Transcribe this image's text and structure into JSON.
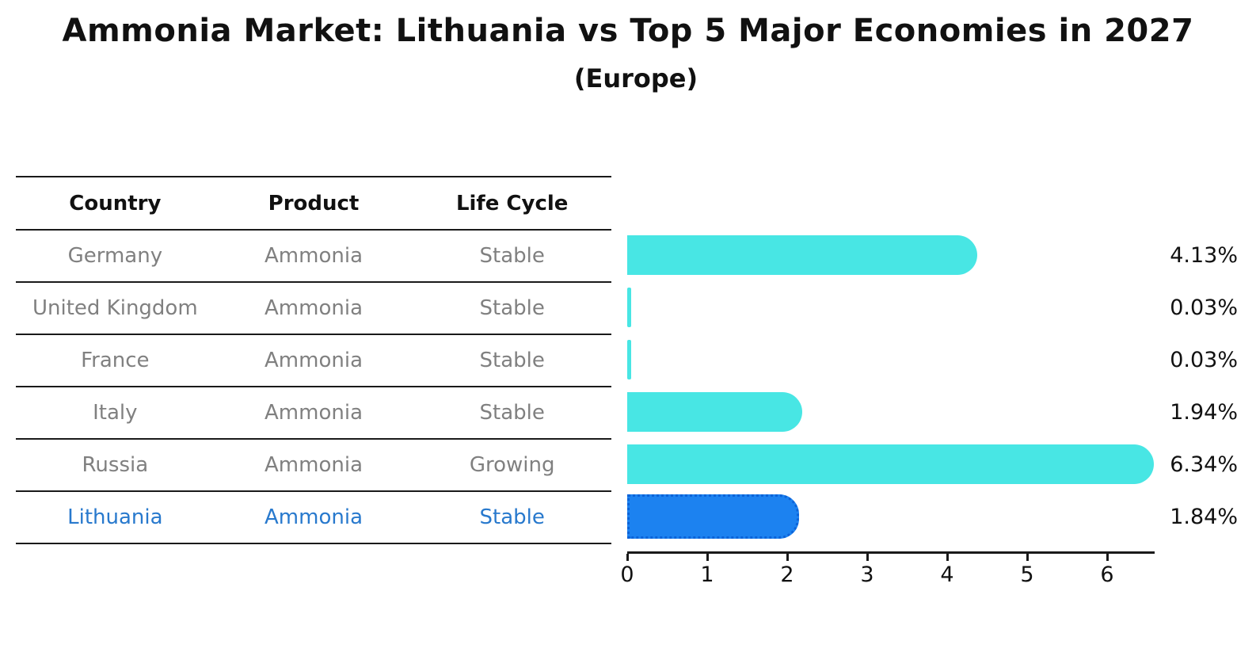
{
  "title": "Ammonia Market: Lithuania vs Top 5 Major Economies in 2027",
  "subtitle": "(Europe)",
  "table": {
    "headers": [
      "Country",
      "Product",
      "Life Cycle"
    ],
    "rows": [
      {
        "country": "Germany",
        "product": "Ammonia",
        "life_cycle": "Stable",
        "highlighted": false
      },
      {
        "country": "United Kingdom",
        "product": "Ammonia",
        "life_cycle": "Stable",
        "highlighted": false
      },
      {
        "country": "France",
        "product": "Ammonia",
        "life_cycle": "Stable",
        "highlighted": false
      },
      {
        "country": "Italy",
        "product": "Ammonia",
        "life_cycle": "Stable",
        "highlighted": false
      },
      {
        "country": "Russia",
        "product": "Ammonia",
        "life_cycle": "Growing",
        "highlighted": false
      },
      {
        "country": "Lithuania",
        "product": "Ammonia",
        "life_cycle": "Stable",
        "highlighted": true
      }
    ]
  },
  "chart_data": {
    "type": "bar",
    "orientation": "horizontal",
    "categories": [
      "Germany",
      "United Kingdom",
      "France",
      "Italy",
      "Russia",
      "Lithuania"
    ],
    "values": [
      4.13,
      0.03,
      0.03,
      1.94,
      6.34,
      1.84
    ],
    "value_labels": [
      "4.13%",
      "0.03%",
      "0.03%",
      "1.94%",
      "6.34%",
      "1.84%"
    ],
    "x_ticks": [
      "0",
      "1",
      "2",
      "3",
      "4",
      "5",
      "6"
    ],
    "xlim": [
      0,
      6.6
    ],
    "grid": false,
    "legend": "none",
    "highlight_index": 5,
    "colors": {
      "bar": "#48e6e4",
      "highlight_bar": "#1c82f0",
      "highlight_border": "#0c63d8",
      "table_text": "#808080",
      "highlight_text": "#2879cd",
      "text": "#111111",
      "line": "#1a1a1a"
    }
  }
}
